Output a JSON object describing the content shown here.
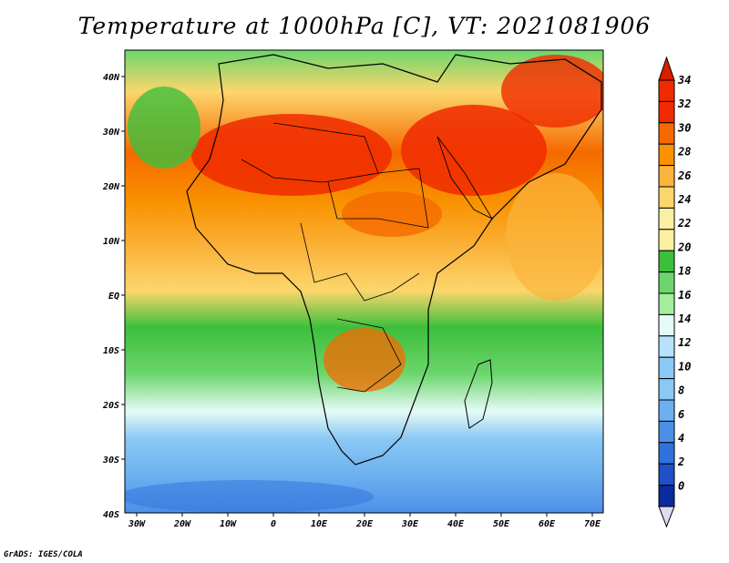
{
  "title": "Temperature at 1000hPa [C], VT: 2021081906",
  "credit": "GrADS: IGES/COLA",
  "map": {
    "lon_labels": [
      "30W",
      "20W",
      "10W",
      "0",
      "10E",
      "20E",
      "30E",
      "40E",
      "50E",
      "60E",
      "70E"
    ],
    "lat_labels": [
      "40N",
      "30N",
      "20N",
      "10N",
      "EQ",
      "10S",
      "20S",
      "30S",
      "40S"
    ]
  },
  "colorbar": {
    "labels": [
      "34",
      "32",
      "30",
      "28",
      "26",
      "24",
      "22",
      "20",
      "18",
      "16",
      "14",
      "12",
      "10",
      "8",
      "6",
      "4",
      "2",
      "0"
    ],
    "colors": [
      "#f02a00",
      "#f56a00",
      "#f99200",
      "#fbb33c",
      "#fcd66c",
      "#fbf0a2",
      "#3cbf3c",
      "#6cd66c",
      "#a2ee9d",
      "#e5fbf5",
      "#b7e1fa",
      "#8ac8f5",
      "#6cb0ef",
      "#4b90e8",
      "#3072db",
      "#1e50c8",
      "#0b2a9e",
      "#f0f0fa"
    ],
    "top_arrow_color": "#d81e00",
    "bottom_arrow_color": "#dcdcf5"
  }
}
